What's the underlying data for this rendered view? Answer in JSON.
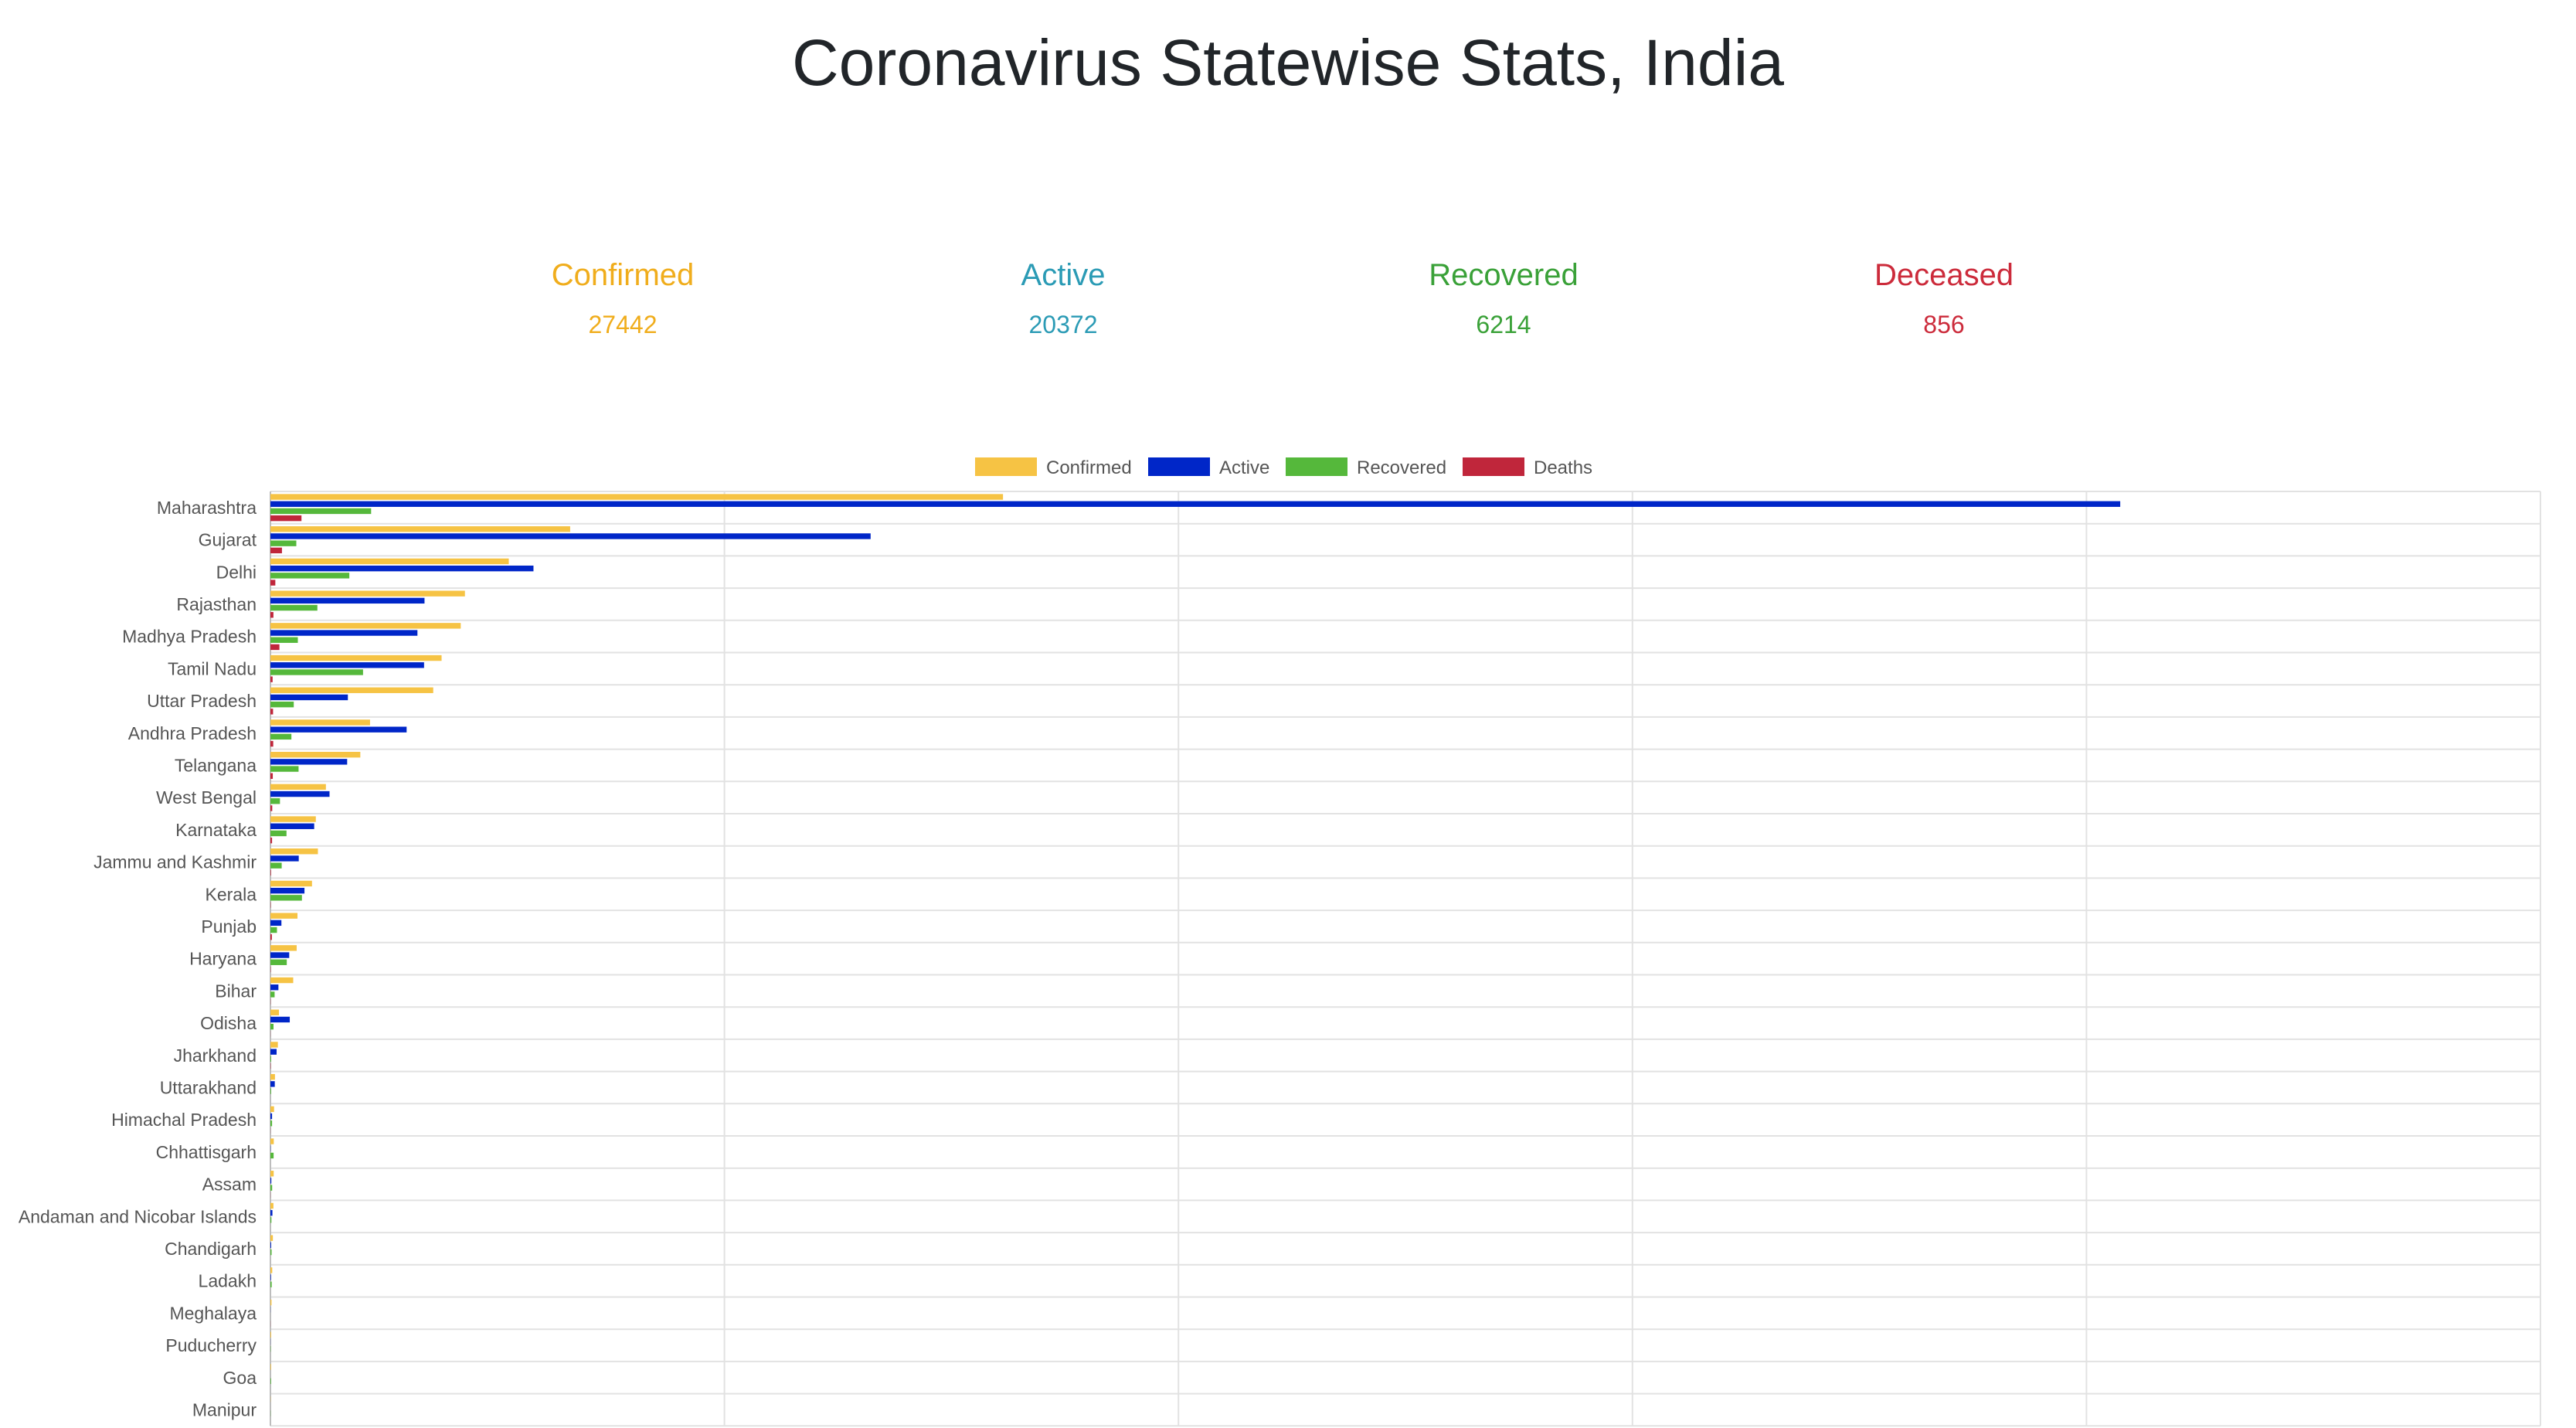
{
  "header": {
    "title": "Coronavirus Statewise Stats, India"
  },
  "stats": [
    {
      "label": "Confirmed",
      "value": "27442",
      "color": "#f0ad1c"
    },
    {
      "label": "Active",
      "value": "20372",
      "color": "#2b9bb5"
    },
    {
      "label": "Recovered",
      "value": "6214",
      "color": "#3aa138"
    },
    {
      "label": "Deceased",
      "value": "856",
      "color": "#cc2b3b"
    }
  ],
  "chart_data": {
    "type": "bar",
    "orientation": "horizontal",
    "categories": [
      "Maharashtra",
      "Gujarat",
      "Delhi",
      "Rajasthan",
      "Madhya Pradesh",
      "Tamil Nadu",
      "Uttar Pradesh",
      "Andhra Pradesh",
      "Telangana",
      "West Bengal",
      "Karnataka",
      "Jammu and Kashmir",
      "Kerala",
      "Punjab",
      "Haryana",
      "Bihar",
      "Odisha",
      "Jharkhand",
      "Uttarakhand",
      "Himachal Pradesh",
      "Chhattisgarh",
      "Assam",
      "Andaman and Nicobar Islands",
      "Chandigarh",
      "Ladakh",
      "Meghalaya",
      "Puducherry",
      "Goa",
      "Manipur"
    ],
    "series": [
      {
        "name": "Confirmed",
        "color": "#f6c344",
        "values": [
          8068,
          3301,
          2625,
          2142,
          2096,
          1885,
          1793,
          1097,
          990,
          611,
          500,
          523,
          458,
          298,
          289,
          251,
          94,
          82,
          50,
          40,
          37,
          36,
          33,
          27,
          20,
          12,
          8,
          7,
          2
        ]
      },
      {
        "name": "Active",
        "color": "#0026c8",
        "values": [
          20372,
          6610,
          2897,
          1697,
          1619,
          1692,
          853,
          1500,
          845,
          651,
          482,
          312,
          375,
          121,
          207,
          88,
          213,
          68,
          48,
          18,
          2,
          10,
          22,
          8,
          6,
          1,
          1,
          0,
          0
        ]
      },
      {
        "name": "Recovered",
        "color": "#55b83b",
        "values": [
          1109,
          285,
          869,
          517,
          302,
          1020,
          257,
          231,
          310,
          105,
          177,
          124,
          347,
          72,
          180,
          46,
          34,
          8,
          8,
          18,
          35,
          19,
          11,
          13,
          14,
          0,
          3,
          7,
          2
        ]
      },
      {
        "name": "Deaths",
        "color": "#c0263b",
        "values": [
          342,
          127,
          54,
          33,
          99,
          24,
          29,
          31,
          26,
          20,
          18,
          6,
          3,
          16,
          3,
          2,
          1,
          3,
          0,
          1,
          0,
          1,
          0,
          0,
          0,
          1,
          0,
          0,
          0
        ]
      }
    ],
    "xlim": [
      0,
      25000
    ],
    "grid": true,
    "legend": "top"
  }
}
